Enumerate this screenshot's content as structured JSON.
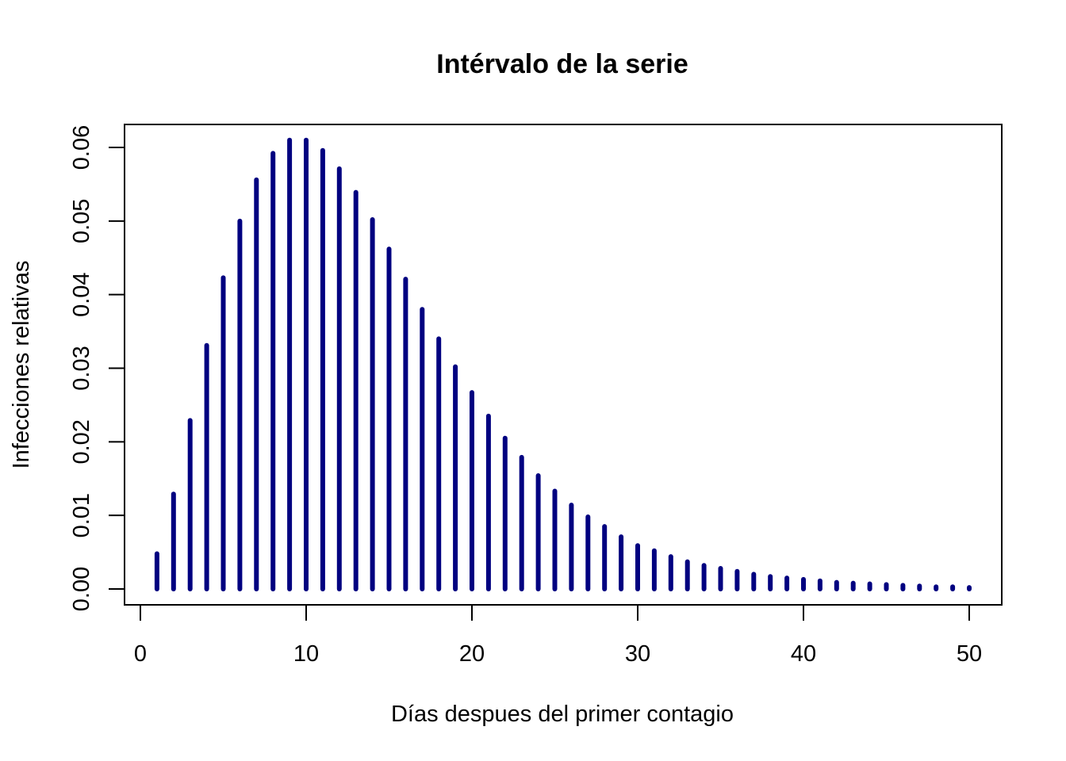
{
  "chart_data": {
    "type": "bar",
    "subtype": "histogram-lines",
    "title": "Intérvalo de la serie",
    "xlabel": "Días despues del primer contagio",
    "ylabel": "Infecciones relativas",
    "xlim": [
      0,
      50
    ],
    "ylim": [
      0,
      0.06
    ],
    "x_ticks": [
      0,
      10,
      20,
      30,
      40,
      50
    ],
    "x_tick_labels": [
      "0",
      "10",
      "20",
      "30",
      "40",
      "50"
    ],
    "y_ticks": [
      0,
      0.01,
      0.02,
      0.03,
      0.04,
      0.05,
      0.06
    ],
    "y_tick_labels": [
      "0.00",
      "0.01",
      "0.02",
      "0.03",
      "0.04",
      "0.05",
      "0.06"
    ],
    "grid": false,
    "legend": null,
    "color": "#000080",
    "x": [
      1,
      2,
      3,
      4,
      5,
      6,
      7,
      8,
      9,
      10,
      11,
      12,
      13,
      14,
      15,
      16,
      17,
      18,
      19,
      20,
      21,
      22,
      23,
      24,
      25,
      26,
      27,
      28,
      29,
      30,
      31,
      32,
      33,
      34,
      35,
      36,
      37,
      38,
      39,
      40,
      41,
      42,
      43,
      44,
      45,
      46,
      47,
      48,
      49,
      50
    ],
    "values": [
      0.0048,
      0.0129,
      0.0229,
      0.0331,
      0.0423,
      0.05,
      0.0556,
      0.0592,
      0.061,
      0.061,
      0.0596,
      0.0571,
      0.0539,
      0.0502,
      0.0462,
      0.0421,
      0.038,
      0.034,
      0.0302,
      0.0267,
      0.0235,
      0.0205,
      0.0179,
      0.0154,
      0.0133,
      0.0114,
      0.0098,
      0.0085,
      0.0071,
      0.0059,
      0.0052,
      0.0044,
      0.0037,
      0.0032,
      0.0028,
      0.0024,
      0.002,
      0.0017,
      0.0015,
      0.0013,
      0.0011,
      0.0009,
      0.0008,
      0.0007,
      0.0006,
      0.0005,
      0.0004,
      0.0003,
      0.0003,
      0.0002
    ]
  }
}
